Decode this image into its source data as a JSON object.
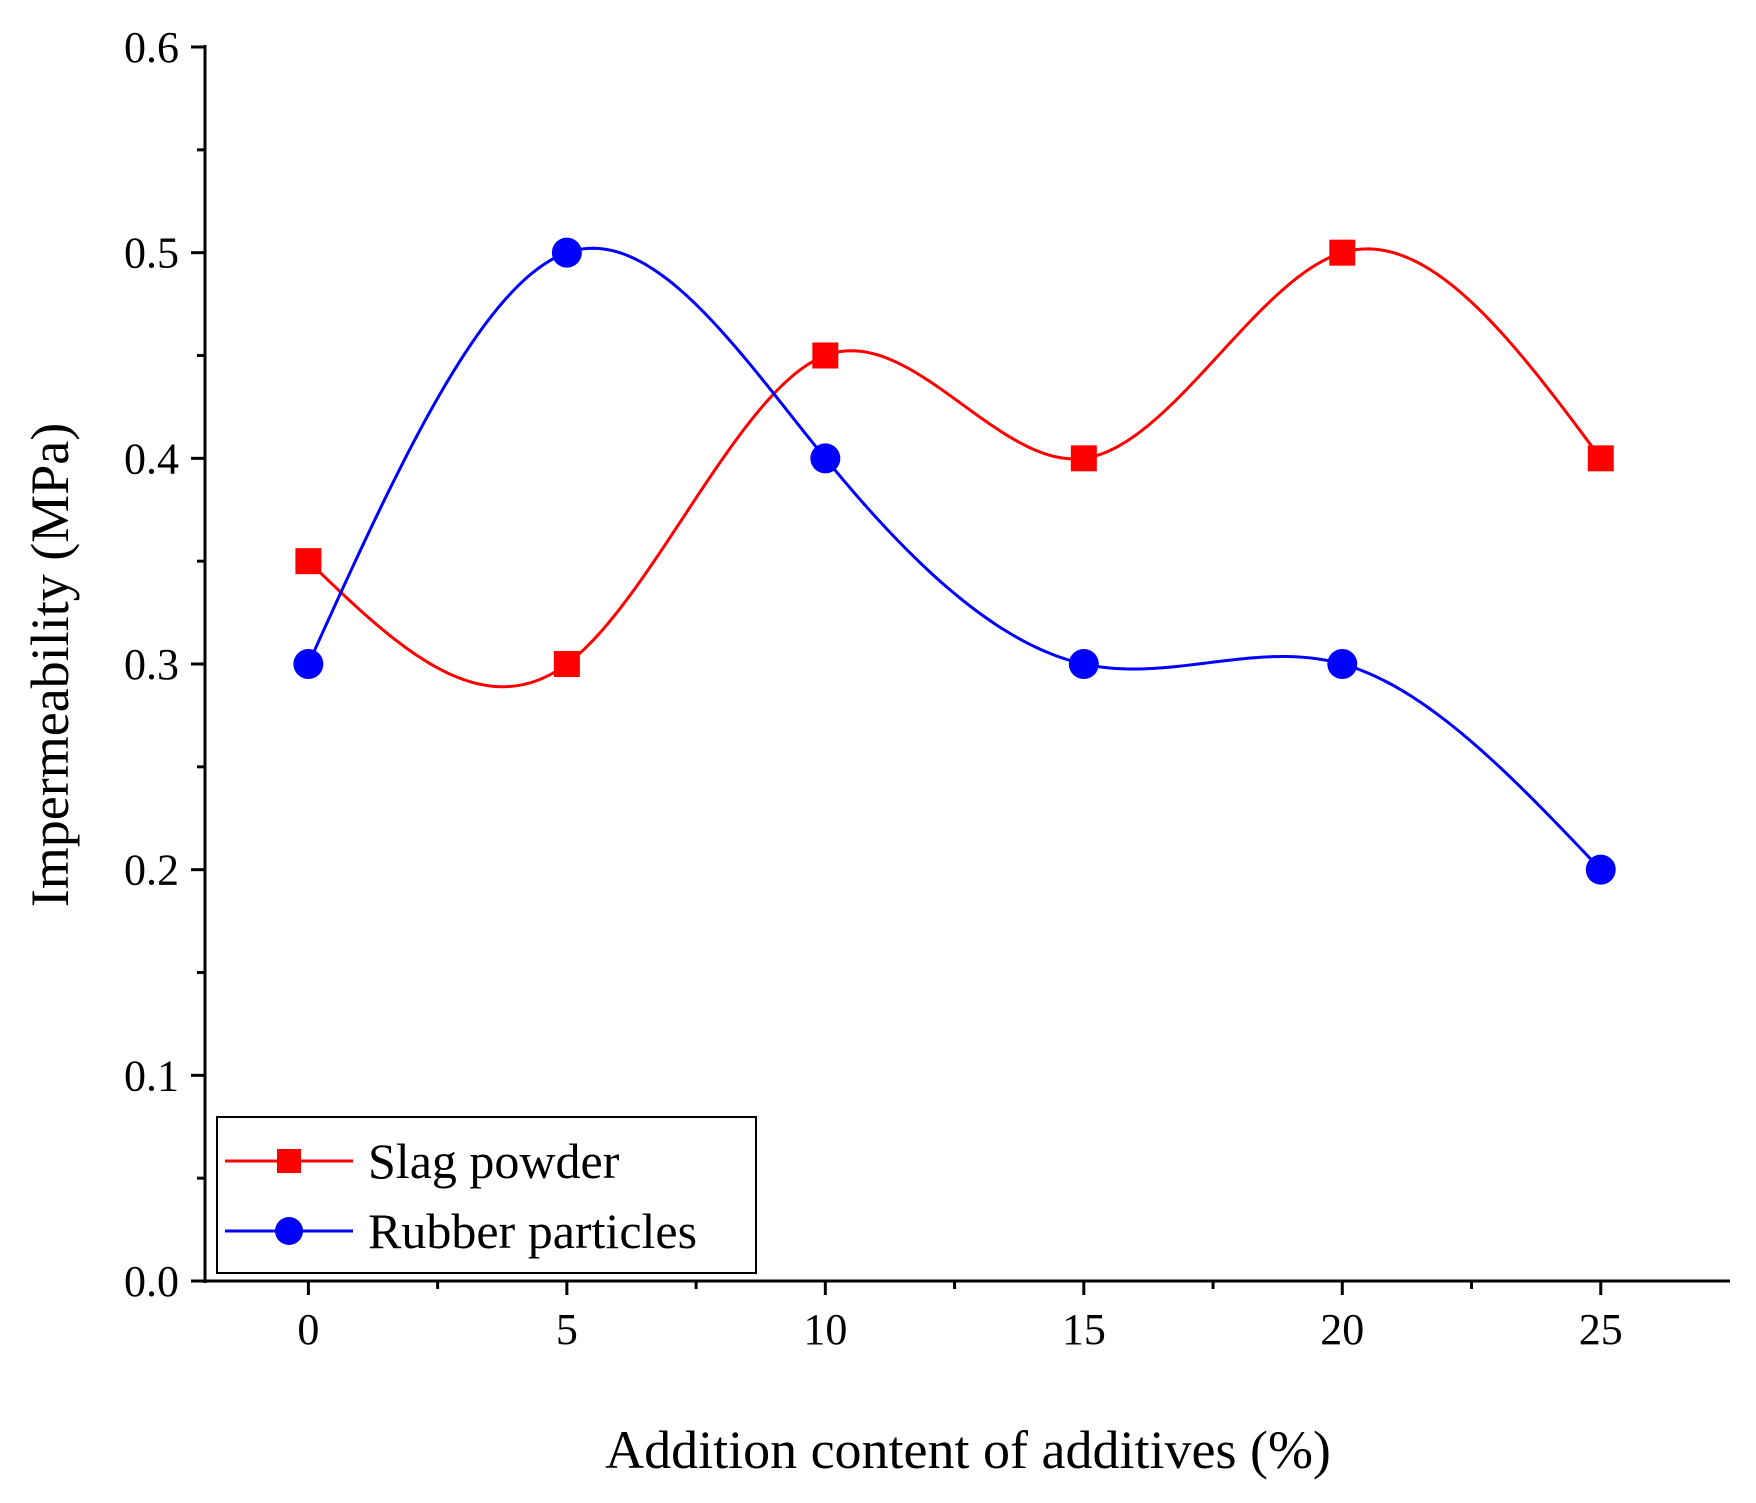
{
  "chart_data": {
    "type": "line",
    "title": "",
    "xlabel": "Addition content of additives (%)",
    "ylabel": "Impermeability (MPa)",
    "x": [
      0,
      5,
      10,
      15,
      20,
      25
    ],
    "x_tick_labels": [
      "0",
      "5",
      "10",
      "15",
      "20",
      "25"
    ],
    "y_tick_labels": [
      "0.0",
      "0.1",
      "0.2",
      "0.3",
      "0.4",
      "0.5",
      "0.6"
    ],
    "y_ticks": [
      0.0,
      0.1,
      0.2,
      0.3,
      0.4,
      0.5,
      0.6
    ],
    "xlim": [
      -2,
      27.5
    ],
    "ylim": [
      0,
      0.6
    ],
    "grid": false,
    "legend_position": "bottom-left",
    "series": [
      {
        "name": "Slag powder",
        "color": "#ff0000",
        "marker": "square",
        "values": [
          0.35,
          0.3,
          0.45,
          0.4,
          0.5,
          0.4
        ]
      },
      {
        "name": "Rubber particles",
        "color": "#0000ff",
        "marker": "circle",
        "values": [
          0.3,
          0.5,
          0.4,
          0.3,
          0.3,
          0.2
        ]
      }
    ]
  }
}
